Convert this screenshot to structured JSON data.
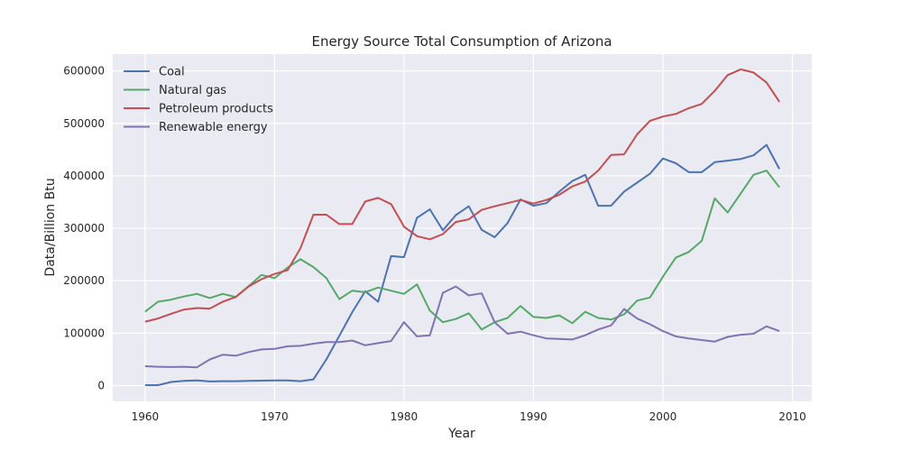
{
  "chart_data": {
    "type": "line",
    "title": "Energy Source Total Consumption of Arizona",
    "xlabel": "Year",
    "ylabel": "Data/Billion Btu",
    "xlim": [
      1957.5,
      2011.5
    ],
    "ylim": [
      -30000,
      632000
    ],
    "xticks": [
      1960,
      1970,
      1980,
      1990,
      2000,
      2010
    ],
    "yticks": [
      0,
      100000,
      200000,
      300000,
      400000,
      500000,
      600000
    ],
    "grid": true,
    "legend_position": "top-left",
    "x": [
      1960,
      1961,
      1962,
      1963,
      1964,
      1965,
      1966,
      1967,
      1968,
      1969,
      1970,
      1971,
      1972,
      1973,
      1974,
      1975,
      1976,
      1977,
      1978,
      1979,
      1980,
      1981,
      1982,
      1983,
      1984,
      1985,
      1986,
      1987,
      1988,
      1989,
      1990,
      1991,
      1992,
      1993,
      1994,
      1995,
      1996,
      1997,
      1998,
      1999,
      2000,
      2001,
      2002,
      2003,
      2004,
      2005,
      2006,
      2007,
      2008,
      2009
    ],
    "series": [
      {
        "name": "Coal",
        "color": "#4c72b0",
        "values": [
          1000,
          1000,
          7000,
          9000,
          10000,
          8000,
          8500,
          8500,
          9000,
          9500,
          10000,
          10000,
          8500,
          12000,
          50000,
          95000,
          140000,
          180000,
          160000,
          247000,
          245000,
          320000,
          336000,
          296000,
          325000,
          342000,
          297000,
          283000,
          310000,
          355000,
          343000,
          348000,
          370000,
          390000,
          402000,
          343000,
          343000,
          370000,
          387000,
          404000,
          433000,
          424000,
          407000,
          407000,
          426000,
          429000,
          432000,
          439000,
          459000,
          413000
        ]
      },
      {
        "name": "Natural gas",
        "color": "#55a868",
        "values": [
          141000,
          160000,
          164000,
          170000,
          175000,
          167000,
          175000,
          169000,
          190000,
          211000,
          205000,
          225000,
          241000,
          226000,
          205000,
          165000,
          181000,
          178000,
          187000,
          181000,
          175000,
          193000,
          143000,
          121000,
          127000,
          138000,
          107000,
          121000,
          129000,
          152000,
          131000,
          129000,
          134000,
          119000,
          141000,
          129000,
          126000,
          136000,
          162000,
          168000,
          208000,
          244000,
          255000,
          276000,
          357000,
          330000,
          366000,
          402000,
          410000,
          378000
        ]
      },
      {
        "name": "Petroleum products",
        "color": "#c44e52",
        "values": [
          122000,
          128000,
          137000,
          145000,
          148000,
          147000,
          160000,
          169000,
          189000,
          203000,
          213000,
          220000,
          262000,
          326000,
          326000,
          308000,
          308000,
          351000,
          358000,
          346000,
          303000,
          285000,
          279000,
          289000,
          312000,
          317000,
          335000,
          342000,
          348000,
          354000,
          347000,
          354000,
          364000,
          380000,
          389000,
          410000,
          440000,
          441000,
          479000,
          505000,
          513000,
          518000,
          529000,
          537000,
          562000,
          592000,
          603000,
          597000,
          578000,
          541000
        ]
      },
      {
        "name": "Renewable energy",
        "color": "#8172b2",
        "values": [
          37000,
          36000,
          35500,
          36000,
          35000,
          50000,
          59000,
          57000,
          64000,
          69000,
          70000,
          75000,
          76000,
          80000,
          83000,
          83000,
          86000,
          77000,
          81000,
          85000,
          121000,
          94000,
          96000,
          177000,
          189000,
          172000,
          176000,
          121000,
          99000,
          103000,
          96000,
          90000,
          89000,
          88000,
          96000,
          107000,
          115000,
          146000,
          128000,
          117000,
          104000,
          94000,
          90000,
          87000,
          84000,
          93000,
          97000,
          99000,
          113000,
          104000
        ]
      }
    ]
  }
}
